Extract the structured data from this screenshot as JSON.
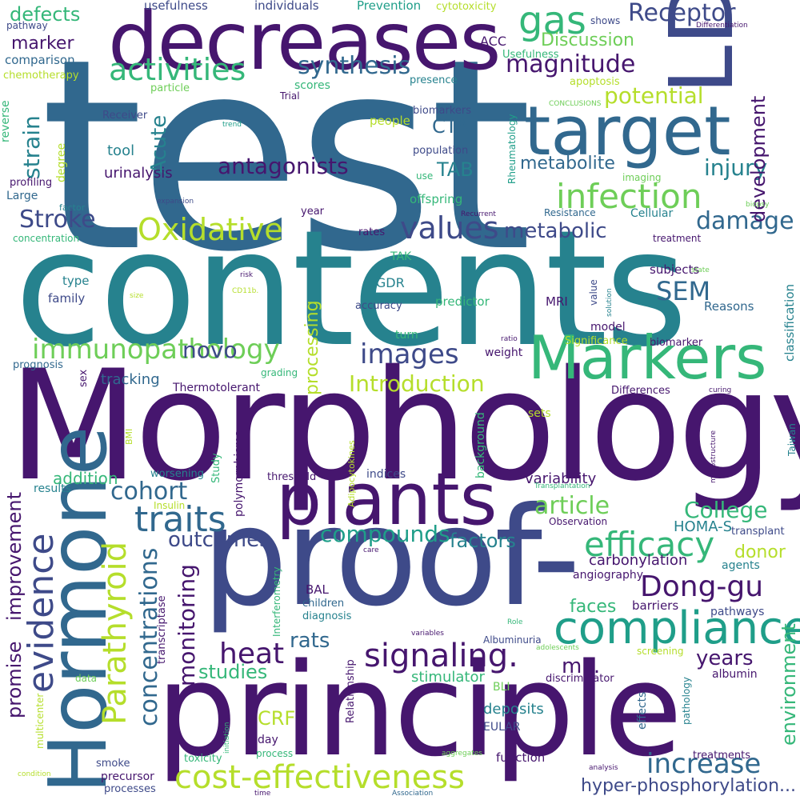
{
  "palette": {
    "dark_purple": "#46166e",
    "indigo": "#3e4a89",
    "blue": "#31688e",
    "teal": "#26828e",
    "green_teal": "#1f9e89",
    "green": "#35b779",
    "light_green": "#6ece58",
    "yellow_green": "#b5de2b",
    "background": "#ffffff"
  },
  "words": {
    "test": "test",
    "contents": "contents",
    "morphology": "Morphology",
    "principle": "principle",
    "proof": "proof-",
    "hormone": "Hormone",
    "decreases": "decreases",
    "ldl": "LDL",
    "target": "target",
    "plants": "plants",
    "markers": "Markers",
    "compliance": "compliance",
    "cost_effectiveness": "cost-effectiveness",
    "infection": "infection",
    "immunopathology": "immunopathology",
    "efficacy": "efficacy",
    "signaling": "signaling.",
    "traits": "traits",
    "evidence": "evidence",
    "parathyroid": "Parathyroid",
    "oxidative": "Oxidative",
    "activities": "activities",
    "values": "values",
    "receptor": "Receptor",
    "gas": "gas",
    "dong_gu": "Dong-gu",
    "heat": "heat",
    "increase": "increase",
    "magnitude": "magnitude",
    "damage": "damage",
    "images": "images",
    "stroke": "Stroke",
    "antagonists": "antagonists",
    "synthesis": "synthesis",
    "article": "article",
    "cohort": "cohort",
    "college": "College",
    "concentrations": "concentrations",
    "monitoring": "monitoring",
    "compounds": "compounds",
    "injury": "injury",
    "metabolic": "metabolic",
    "introduction": "Introduction",
    "outcomes": "outcomes",
    "novo": "novo",
    "sem": "SEM",
    "rats": "rats",
    "years": "years",
    "strain": "strain",
    "potential": "potential",
    "development": "development",
    "environment": "environment",
    "defects": "defects",
    "acute": "Acute",
    "metabolite": "metabolite",
    "ml": "mL.",
    "studies": "studies",
    "factors": "factors",
    "improvement": "improvement",
    "promise": "promise",
    "faces": "faces",
    "processing": "processing",
    "crf": "CRF",
    "hyper_phosphorylation": "hyper-phosphorylation...",
    "cta": "CTA",
    "tab": "TAB",
    "discussion": "Discussion",
    "marker": "marker",
    "donor": "donor",
    "homa_s": "HOMA-S",
    "carbonylation": "carbonylation",
    "variability": "variability",
    "addition": "addition",
    "tracking": "tracking",
    "stimulator": "stimulator",
    "deposits": "deposits",
    "tool": "tool",
    "urinalysis": "urinalysis",
    "usefulness": "usefulness",
    "individuals": "individuals",
    "prevention": "Prevention",
    "cytotoxicity": "cytotoxicity",
    "pathway": "pathway",
    "comparison": "comparison",
    "chemotherapy": "chemotherapy",
    "acc": "ACC",
    "usefulness2": "Usefulness",
    "particle": "particle",
    "scores": "scores",
    "trial": "Trial",
    "presence": "presence",
    "apoptosis": "apoptosis",
    "reverse": "reverse",
    "receiver": "Receiver",
    "trend": "trend",
    "biomarkers": "biomarkers",
    "people": "people",
    "rheumatology": "Rheumatology",
    "conclusions": "CONCLUSIONS",
    "differentiation": "Differentiation",
    "shows": "shows",
    "degree": "degree",
    "profiling": "profiling",
    "large": "Large",
    "population": "population",
    "use": "use",
    "imaging": "imaging",
    "factor": "factor",
    "expansion": "expansion",
    "offspring": "offspring",
    "year": "year",
    "recurrent": "Recurrent",
    "resistance": "Resistance",
    "cellular": "Cellular",
    "biopsy": "biopsy",
    "concentration": "concentration",
    "rates": "rates",
    "treatment": "treatment",
    "tak": "TAK",
    "subjects": "subjects",
    "type": "type",
    "risk": "risk",
    "egdr": "eGDR",
    "state": "state",
    "family": "family",
    "size": "size",
    "cd11b": "CD11b.",
    "accuracy": "accuracy",
    "predictor": "predictor",
    "mri": "MRI",
    "value": "value",
    "solution": "solution",
    "reasons": "Reasons",
    "classification": "classification",
    "model": "model",
    "turn": "turn",
    "ratio": "ratio",
    "weight": "weight",
    "significance": "Significance",
    "biomarker": "biomarker",
    "prognosis": "prognosis",
    "sex": "sex",
    "grading": "grading",
    "thermotolerant": "Thermotolerant",
    "differences": "Differences",
    "curing": "curing",
    "sets": "sets",
    "bmi": "BMI",
    "background": "background",
    "polymorphisms": "polymorphisms",
    "microstructure": "microstructure",
    "taiwan": "Taiwan",
    "study": "Study",
    "worsening": "worsening",
    "threshold": "threshold",
    "indices": "indices",
    "results": "results",
    "insulin": "Insulin",
    "adipocytokines": "Adipocytokines",
    "transplantation": "Transplantation",
    "observation": "Observation",
    "transplant": "transplant",
    "care": "care",
    "interferometry": "Interferometry",
    "angiography": "angiography",
    "agents": "agents",
    "transcriptase": "transcriptase",
    "bal": "BAL",
    "children": "children",
    "diagnosis": "diagnosis",
    "barriers": "barriers",
    "pathways": "pathways",
    "role": "Role",
    "variables": "variables",
    "albuminuria": "Albuminuria",
    "adolescents": "adolescents",
    "screening": "screening",
    "data": "data",
    "relationship": "Relationship",
    "bli": "BLI",
    "discriminator": "discriminator",
    "effects": "effects",
    "pathology": "pathology",
    "albumin": "albumin",
    "multicenter": "multicenter",
    "eular": "EULAR",
    "initiation": "initiation",
    "day": "day",
    "process": "process",
    "toxicity": "toxicity",
    "aggregates": "aggregates",
    "function": "function",
    "treatments": "treatments",
    "smoke": "smoke",
    "precursor": "precursor",
    "analysis": "analysis",
    "condition": "condition",
    "processes": "processes",
    "time": "time",
    "association": "Association"
  }
}
